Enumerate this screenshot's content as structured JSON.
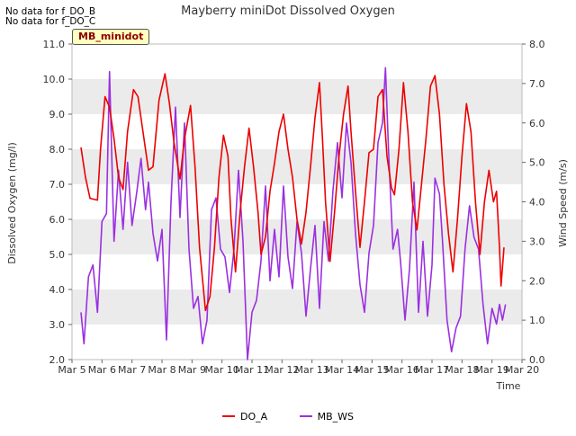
{
  "no_data_notes": [
    "No data for f_DO_B",
    "No data for f_DO_C"
  ],
  "site_label": "MB_minidot",
  "chart_data": {
    "type": "line",
    "title": "Mayberry miniDot Dissolved Oxygen",
    "xlabel": "Time",
    "ylabel": "Dissolved Oxygen (mg/l)",
    "y2label": "Wind Speed (m/s)",
    "x_tick_labels": [
      "Mar 5",
      "Mar 6",
      "Mar 7",
      "Mar 8",
      "Mar 9",
      "Mar 10",
      "Mar 11",
      "Mar 12",
      "Mar 13",
      "Mar 14",
      "Mar 15",
      "Mar 16",
      "Mar 17",
      "Mar 18",
      "Mar 19",
      "Mar 20"
    ],
    "xlim": [
      5,
      20
    ],
    "ylim": [
      2.0,
      11.0
    ],
    "y2lim": [
      0.0,
      8.0
    ],
    "y_ticks": [
      "2.0",
      "3.0",
      "4.0",
      "5.0",
      "6.0",
      "7.0",
      "8.0",
      "9.0",
      "10.0",
      "11.0"
    ],
    "y2_ticks": [
      "0.0",
      "1.0",
      "2.0",
      "3.0",
      "4.0",
      "5.0",
      "6.0",
      "7.0",
      "8.0"
    ],
    "grid": "horizontal bands",
    "legend_position": "bottom",
    "series": [
      {
        "name": "DO_A",
        "axis": "left",
        "color": "#ee0000",
        "points": [
          [
            5.3,
            8.05
          ],
          [
            5.45,
            7.2
          ],
          [
            5.6,
            6.6
          ],
          [
            5.85,
            6.55
          ],
          [
            5.95,
            8.0
          ],
          [
            6.1,
            9.5
          ],
          [
            6.25,
            9.2
          ],
          [
            6.4,
            8.3
          ],
          [
            6.55,
            7.2
          ],
          [
            6.7,
            6.85
          ],
          [
            6.85,
            8.5
          ],
          [
            7.05,
            9.7
          ],
          [
            7.2,
            9.5
          ],
          [
            7.35,
            8.6
          ],
          [
            7.55,
            7.4
          ],
          [
            7.7,
            7.5
          ],
          [
            7.9,
            9.4
          ],
          [
            8.1,
            10.15
          ],
          [
            8.25,
            9.3
          ],
          [
            8.4,
            8.2
          ],
          [
            8.6,
            7.15
          ],
          [
            8.75,
            8.3
          ],
          [
            8.95,
            9.25
          ],
          [
            9.1,
            7.5
          ],
          [
            9.25,
            5.2
          ],
          [
            9.45,
            3.4
          ],
          [
            9.6,
            3.8
          ],
          [
            9.75,
            5.2
          ],
          [
            9.9,
            7.2
          ],
          [
            10.05,
            8.4
          ],
          [
            10.2,
            7.8
          ],
          [
            10.3,
            6.0
          ],
          [
            10.45,
            4.5
          ],
          [
            10.6,
            6.2
          ],
          [
            10.75,
            7.5
          ],
          [
            10.9,
            8.6
          ],
          [
            11.05,
            7.5
          ],
          [
            11.2,
            6.2
          ],
          [
            11.3,
            5.0
          ],
          [
            11.45,
            5.5
          ],
          [
            11.6,
            6.8
          ],
          [
            11.75,
            7.6
          ],
          [
            11.9,
            8.5
          ],
          [
            12.05,
            9.0
          ],
          [
            12.2,
            8.0
          ],
          [
            12.35,
            7.2
          ],
          [
            12.5,
            6.0
          ],
          [
            12.65,
            5.3
          ],
          [
            12.8,
            6.2
          ],
          [
            12.95,
            7.5
          ],
          [
            13.1,
            8.9
          ],
          [
            13.25,
            9.9
          ],
          [
            13.35,
            8.3
          ],
          [
            13.45,
            6.5
          ],
          [
            13.6,
            4.8
          ],
          [
            13.75,
            6.2
          ],
          [
            13.9,
            7.8
          ],
          [
            14.05,
            9.0
          ],
          [
            14.2,
            9.8
          ],
          [
            14.3,
            8.5
          ],
          [
            14.45,
            6.8
          ],
          [
            14.6,
            5.2
          ],
          [
            14.75,
            6.5
          ],
          [
            14.9,
            7.9
          ],
          [
            15.05,
            8.0
          ],
          [
            15.2,
            9.5
          ],
          [
            15.35,
            9.7
          ],
          [
            15.5,
            7.8
          ],
          [
            15.65,
            6.9
          ],
          [
            15.75,
            6.7
          ],
          [
            15.9,
            8.0
          ],
          [
            16.05,
            9.9
          ],
          [
            16.2,
            8.5
          ],
          [
            16.35,
            6.5
          ],
          [
            16.5,
            5.7
          ],
          [
            16.65,
            7.0
          ],
          [
            16.8,
            8.3
          ],
          [
            16.95,
            9.8
          ],
          [
            17.1,
            10.1
          ],
          [
            17.25,
            9.0
          ],
          [
            17.4,
            7.0
          ],
          [
            17.55,
            5.6
          ],
          [
            17.7,
            4.5
          ],
          [
            17.85,
            6.0
          ],
          [
            18.0,
            7.8
          ],
          [
            18.15,
            9.3
          ],
          [
            18.3,
            8.5
          ],
          [
            18.45,
            6.5
          ],
          [
            18.6,
            5.0
          ],
          [
            18.75,
            6.5
          ],
          [
            18.9,
            7.4
          ],
          [
            19.05,
            6.5
          ],
          [
            19.15,
            6.8
          ],
          [
            19.25,
            5.2
          ],
          [
            19.3,
            4.1
          ],
          [
            19.4,
            5.2
          ]
        ]
      },
      {
        "name": "MB_WS",
        "axis": "right",
        "color": "#9b30e0",
        "points": [
          [
            5.3,
            1.2
          ],
          [
            5.4,
            0.4
          ],
          [
            5.55,
            2.1
          ],
          [
            5.7,
            2.4
          ],
          [
            5.85,
            1.2
          ],
          [
            6.0,
            3.5
          ],
          [
            6.15,
            3.7
          ],
          [
            6.25,
            7.3
          ],
          [
            6.4,
            3.0
          ],
          [
            6.55,
            4.8
          ],
          [
            6.7,
            3.3
          ],
          [
            6.85,
            5.0
          ],
          [
            7.0,
            3.4
          ],
          [
            7.15,
            4.2
          ],
          [
            7.3,
            5.1
          ],
          [
            7.45,
            3.8
          ],
          [
            7.55,
            4.5
          ],
          [
            7.7,
            3.2
          ],
          [
            7.85,
            2.5
          ],
          [
            8.0,
            3.3
          ],
          [
            8.15,
            0.5
          ],
          [
            8.3,
            4.0
          ],
          [
            8.45,
            6.4
          ],
          [
            8.6,
            3.6
          ],
          [
            8.75,
            6.0
          ],
          [
            8.9,
            2.8
          ],
          [
            9.05,
            1.3
          ],
          [
            9.2,
            1.6
          ],
          [
            9.35,
            0.4
          ],
          [
            9.5,
            1.0
          ],
          [
            9.65,
            3.8
          ],
          [
            9.8,
            4.1
          ],
          [
            9.95,
            2.8
          ],
          [
            10.1,
            2.6
          ],
          [
            10.25,
            1.7
          ],
          [
            10.4,
            2.8
          ],
          [
            10.55,
            4.8
          ],
          [
            10.7,
            3.0
          ],
          [
            10.85,
            0.0
          ],
          [
            11.0,
            1.2
          ],
          [
            11.15,
            1.5
          ],
          [
            11.3,
            2.5
          ],
          [
            11.45,
            4.4
          ],
          [
            11.6,
            2.0
          ],
          [
            11.75,
            3.3
          ],
          [
            11.9,
            2.1
          ],
          [
            12.05,
            4.4
          ],
          [
            12.2,
            2.6
          ],
          [
            12.35,
            1.8
          ],
          [
            12.5,
            3.5
          ],
          [
            12.65,
            2.7
          ],
          [
            12.8,
            1.1
          ],
          [
            12.95,
            2.3
          ],
          [
            13.1,
            3.4
          ],
          [
            13.25,
            1.3
          ],
          [
            13.4,
            3.5
          ],
          [
            13.55,
            2.5
          ],
          [
            13.7,
            4.3
          ],
          [
            13.85,
            5.5
          ],
          [
            14.0,
            4.1
          ],
          [
            14.15,
            6.0
          ],
          [
            14.3,
            5.0
          ],
          [
            14.45,
            3.2
          ],
          [
            14.6,
            1.9
          ],
          [
            14.75,
            1.2
          ],
          [
            14.9,
            2.7
          ],
          [
            15.05,
            3.4
          ],
          [
            15.2,
            5.5
          ],
          [
            15.35,
            6.0
          ],
          [
            15.45,
            7.4
          ],
          [
            15.55,
            5.3
          ],
          [
            15.7,
            2.8
          ],
          [
            15.85,
            3.3
          ],
          [
            15.95,
            2.5
          ],
          [
            16.1,
            1.0
          ],
          [
            16.25,
            2.3
          ],
          [
            16.4,
            4.5
          ],
          [
            16.55,
            1.2
          ],
          [
            16.7,
            3.0
          ],
          [
            16.85,
            1.1
          ],
          [
            17.0,
            2.4
          ],
          [
            17.1,
            4.6
          ],
          [
            17.25,
            4.2
          ],
          [
            17.35,
            3.0
          ],
          [
            17.5,
            1.0
          ],
          [
            17.65,
            0.2
          ],
          [
            17.8,
            0.8
          ],
          [
            17.95,
            1.1
          ],
          [
            18.1,
            2.8
          ],
          [
            18.25,
            3.9
          ],
          [
            18.4,
            3.1
          ],
          [
            18.55,
            2.8
          ],
          [
            18.7,
            1.4
          ],
          [
            18.85,
            0.4
          ],
          [
            19.0,
            1.3
          ],
          [
            19.15,
            0.9
          ],
          [
            19.25,
            1.4
          ],
          [
            19.35,
            1.0
          ],
          [
            19.45,
            1.4
          ]
        ]
      }
    ]
  }
}
